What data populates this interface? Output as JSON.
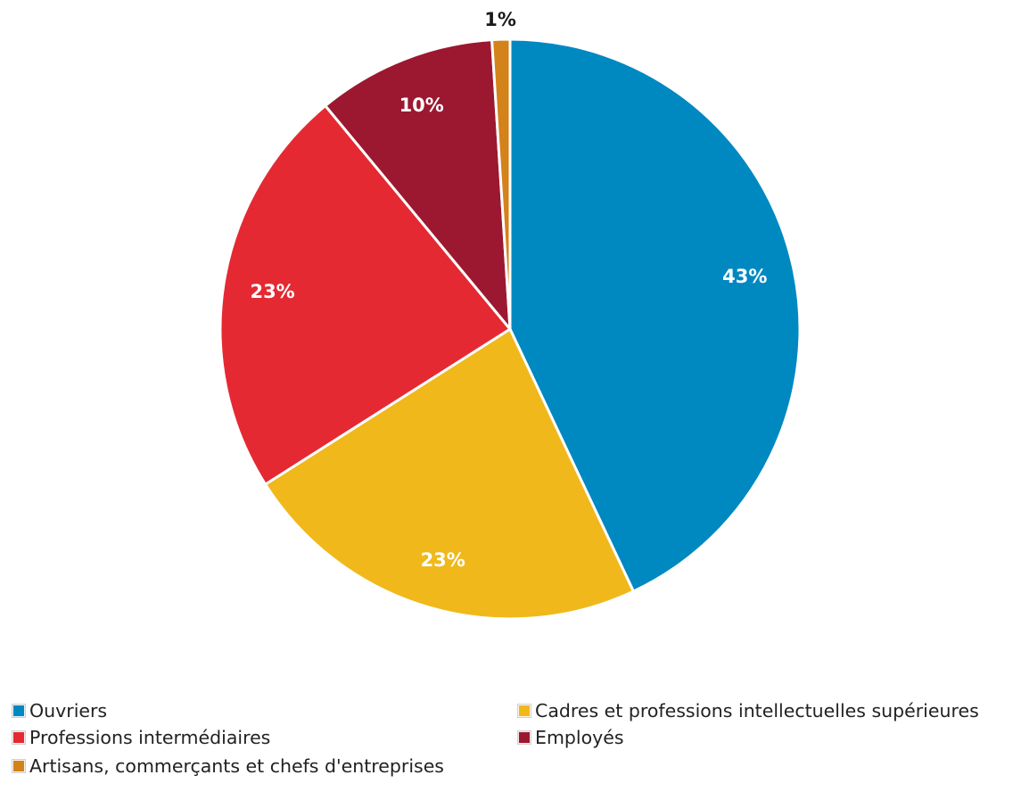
{
  "chart_data": {
    "type": "pie",
    "title": "",
    "start_angle_deg": 0,
    "direction": "clockwise",
    "slices": [
      {
        "label": "Ouvriers",
        "value": 43,
        "display": "43%",
        "color": "#0088c1",
        "label_color": "#ffffff"
      },
      {
        "label": "Cadres et professions intellectuelles supérieures",
        "value": 23,
        "display": "23%",
        "color": "#f0b81b",
        "label_color": "#ffffff"
      },
      {
        "label": "Professions intermédiaires",
        "value": 23,
        "display": "23%",
        "color": "#e52932",
        "label_color": "#ffffff"
      },
      {
        "label": "Employés",
        "value": 10,
        "display": "10%",
        "color": "#9b1830",
        "label_color": "#ffffff"
      },
      {
        "label": "Artisans, commerçants et chefs d'entreprises",
        "value": 1,
        "display": "1%",
        "color": "#d4821a",
        "label_color": "#1a1a1a"
      }
    ],
    "legend": {
      "placement": "bottom",
      "order": [
        0,
        1,
        2,
        3,
        4
      ]
    }
  }
}
